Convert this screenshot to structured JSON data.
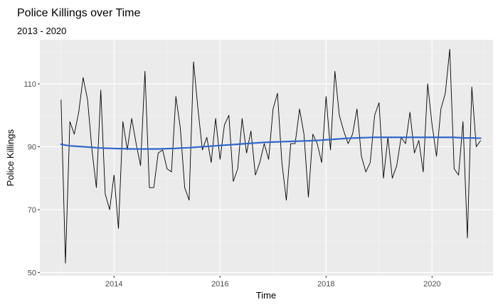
{
  "chart_data": {
    "type": "line",
    "title": "Police Killings over Time",
    "subtitle": "2013 - 2020",
    "xlabel": "Time",
    "ylabel": "Police Killings",
    "xlim": [
      2012.6,
      2021.15
    ],
    "ylim": [
      49,
      124
    ],
    "x_ticks": [
      2014,
      2016,
      2018,
      2020
    ],
    "x_tick_labels": [
      "2014",
      "2016",
      "2018",
      "2020"
    ],
    "y_ticks": [
      50,
      70,
      90,
      110
    ],
    "y_tick_labels": [
      "50",
      "70",
      "90",
      "110"
    ],
    "grid": true,
    "colors": {
      "panel_background": "#ebebeb",
      "grid_major": "#ffffff",
      "grid_minor": "#f4f4f4",
      "data_line": "#000000",
      "trend_line": "#3366cc"
    },
    "series": [
      {
        "values": [
          105,
          53,
          98,
          94,
          101,
          112,
          105,
          89,
          77,
          108,
          75,
          70,
          81,
          64,
          98,
          89,
          99,
          91,
          84,
          114,
          77,
          77,
          88,
          89,
          83,
          82,
          106,
          96,
          77,
          73,
          117,
          102,
          89,
          93,
          85,
          99,
          86,
          97,
          100,
          79,
          83,
          99,
          88,
          95,
          81,
          85,
          91,
          86,
          102,
          107,
          85,
          73,
          91,
          91,
          102,
          94,
          74,
          94,
          91,
          85,
          106,
          89,
          114,
          100,
          95,
          91,
          94,
          102,
          87,
          82,
          85,
          100,
          104,
          80,
          93,
          80,
          84,
          93,
          91,
          101,
          88,
          92,
          82,
          110,
          97,
          87,
          102,
          107,
          121,
          83,
          81,
          98,
          61,
          109,
          90,
          92
        ]
      },
      {
        "values": [
          90.8,
          90.5,
          90.3,
          90.2,
          90.1,
          90.0,
          89.9,
          89.8,
          89.7,
          89.6,
          89.55,
          89.5,
          89.45,
          89.4,
          89.4,
          89.35,
          89.3,
          89.3,
          89.3,
          89.3,
          89.3,
          89.3,
          89.3,
          89.35,
          89.4,
          89.45,
          89.5,
          89.6,
          89.65,
          89.7,
          89.8,
          89.9,
          90.0,
          90.1,
          90.2,
          90.3,
          90.4,
          90.5,
          90.6,
          90.7,
          90.8,
          90.9,
          91.0,
          91.1,
          91.2,
          91.3,
          91.4,
          91.45,
          91.5,
          91.55,
          91.6,
          91.65,
          91.7,
          91.75,
          91.8,
          91.85,
          91.9,
          91.95,
          92.0,
          92.1,
          92.2,
          92.3,
          92.4,
          92.5,
          92.6,
          92.7,
          92.75,
          92.8,
          92.85,
          92.9,
          92.95,
          93.0,
          93.0,
          93.0,
          93.0,
          93.0,
          93.0,
          93.0,
          93.0,
          93.0,
          93.0,
          93.0,
          93.0,
          93.0,
          93.0,
          93.0,
          93.0,
          93.0,
          93.0,
          93.0,
          92.9,
          92.8,
          92.8,
          92.8,
          92.75,
          92.7
        ]
      }
    ]
  }
}
